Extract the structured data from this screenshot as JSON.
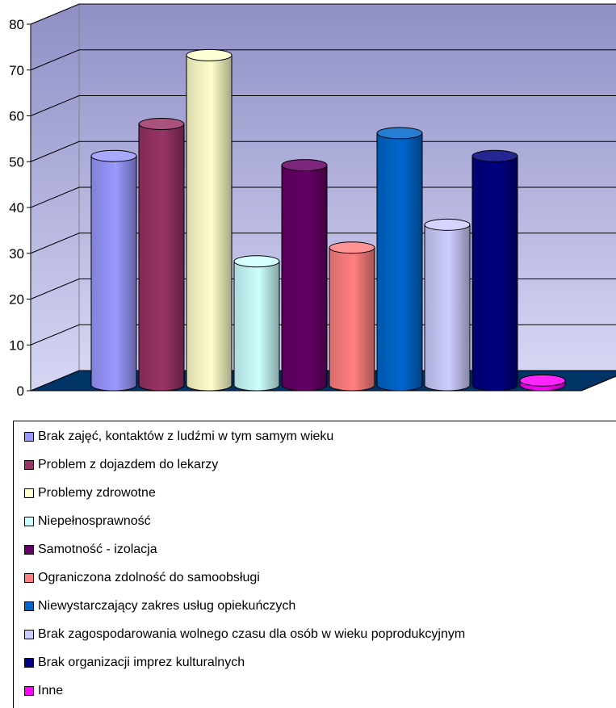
{
  "chart_data": {
    "type": "bar",
    "title": "",
    "xlabel": "",
    "ylabel": "",
    "ylim": [
      0,
      80
    ],
    "yticks": [
      0,
      10,
      20,
      30,
      40,
      50,
      60,
      70,
      80
    ],
    "grid": true,
    "legend_position": "bottom",
    "style": "3d-cylinder",
    "series": [
      {
        "name": "Brak zajęć, kontaktów z ludźmi w tym samym wieku",
        "value": 50,
        "color": "#9999ff"
      },
      {
        "name": "Problem z dojazdem do lekarzy",
        "value": 57,
        "color": "#993366"
      },
      {
        "name": "Problemy zdrowotne",
        "value": 72,
        "color": "#ffffcc"
      },
      {
        "name": "Niepełnosprawność",
        "value": 27,
        "color": "#ccffff"
      },
      {
        "name": "Samotność - izolacja",
        "value": 48,
        "color": "#660066"
      },
      {
        "name": "Ograniczona zdolność do samoobsługi",
        "value": 30,
        "color": "#ff8080"
      },
      {
        "name": "Niewystarczający zakres usług opiekuńczych",
        "value": 55,
        "color": "#0066cc"
      },
      {
        "name": "Brak zagospodarowania wolnego czasu dla osób w wieku poprodukcyjnym",
        "value": 35,
        "color": "#ccccff"
      },
      {
        "name": "Brak organizacji imprez kulturalnych",
        "value": 50,
        "color": "#000080"
      },
      {
        "name": "Inne",
        "value": 1,
        "color": "#ff00ff"
      }
    ],
    "colors": {
      "wall": "#a0a0d8",
      "floor": "#003366",
      "gridline": "#000000"
    }
  }
}
